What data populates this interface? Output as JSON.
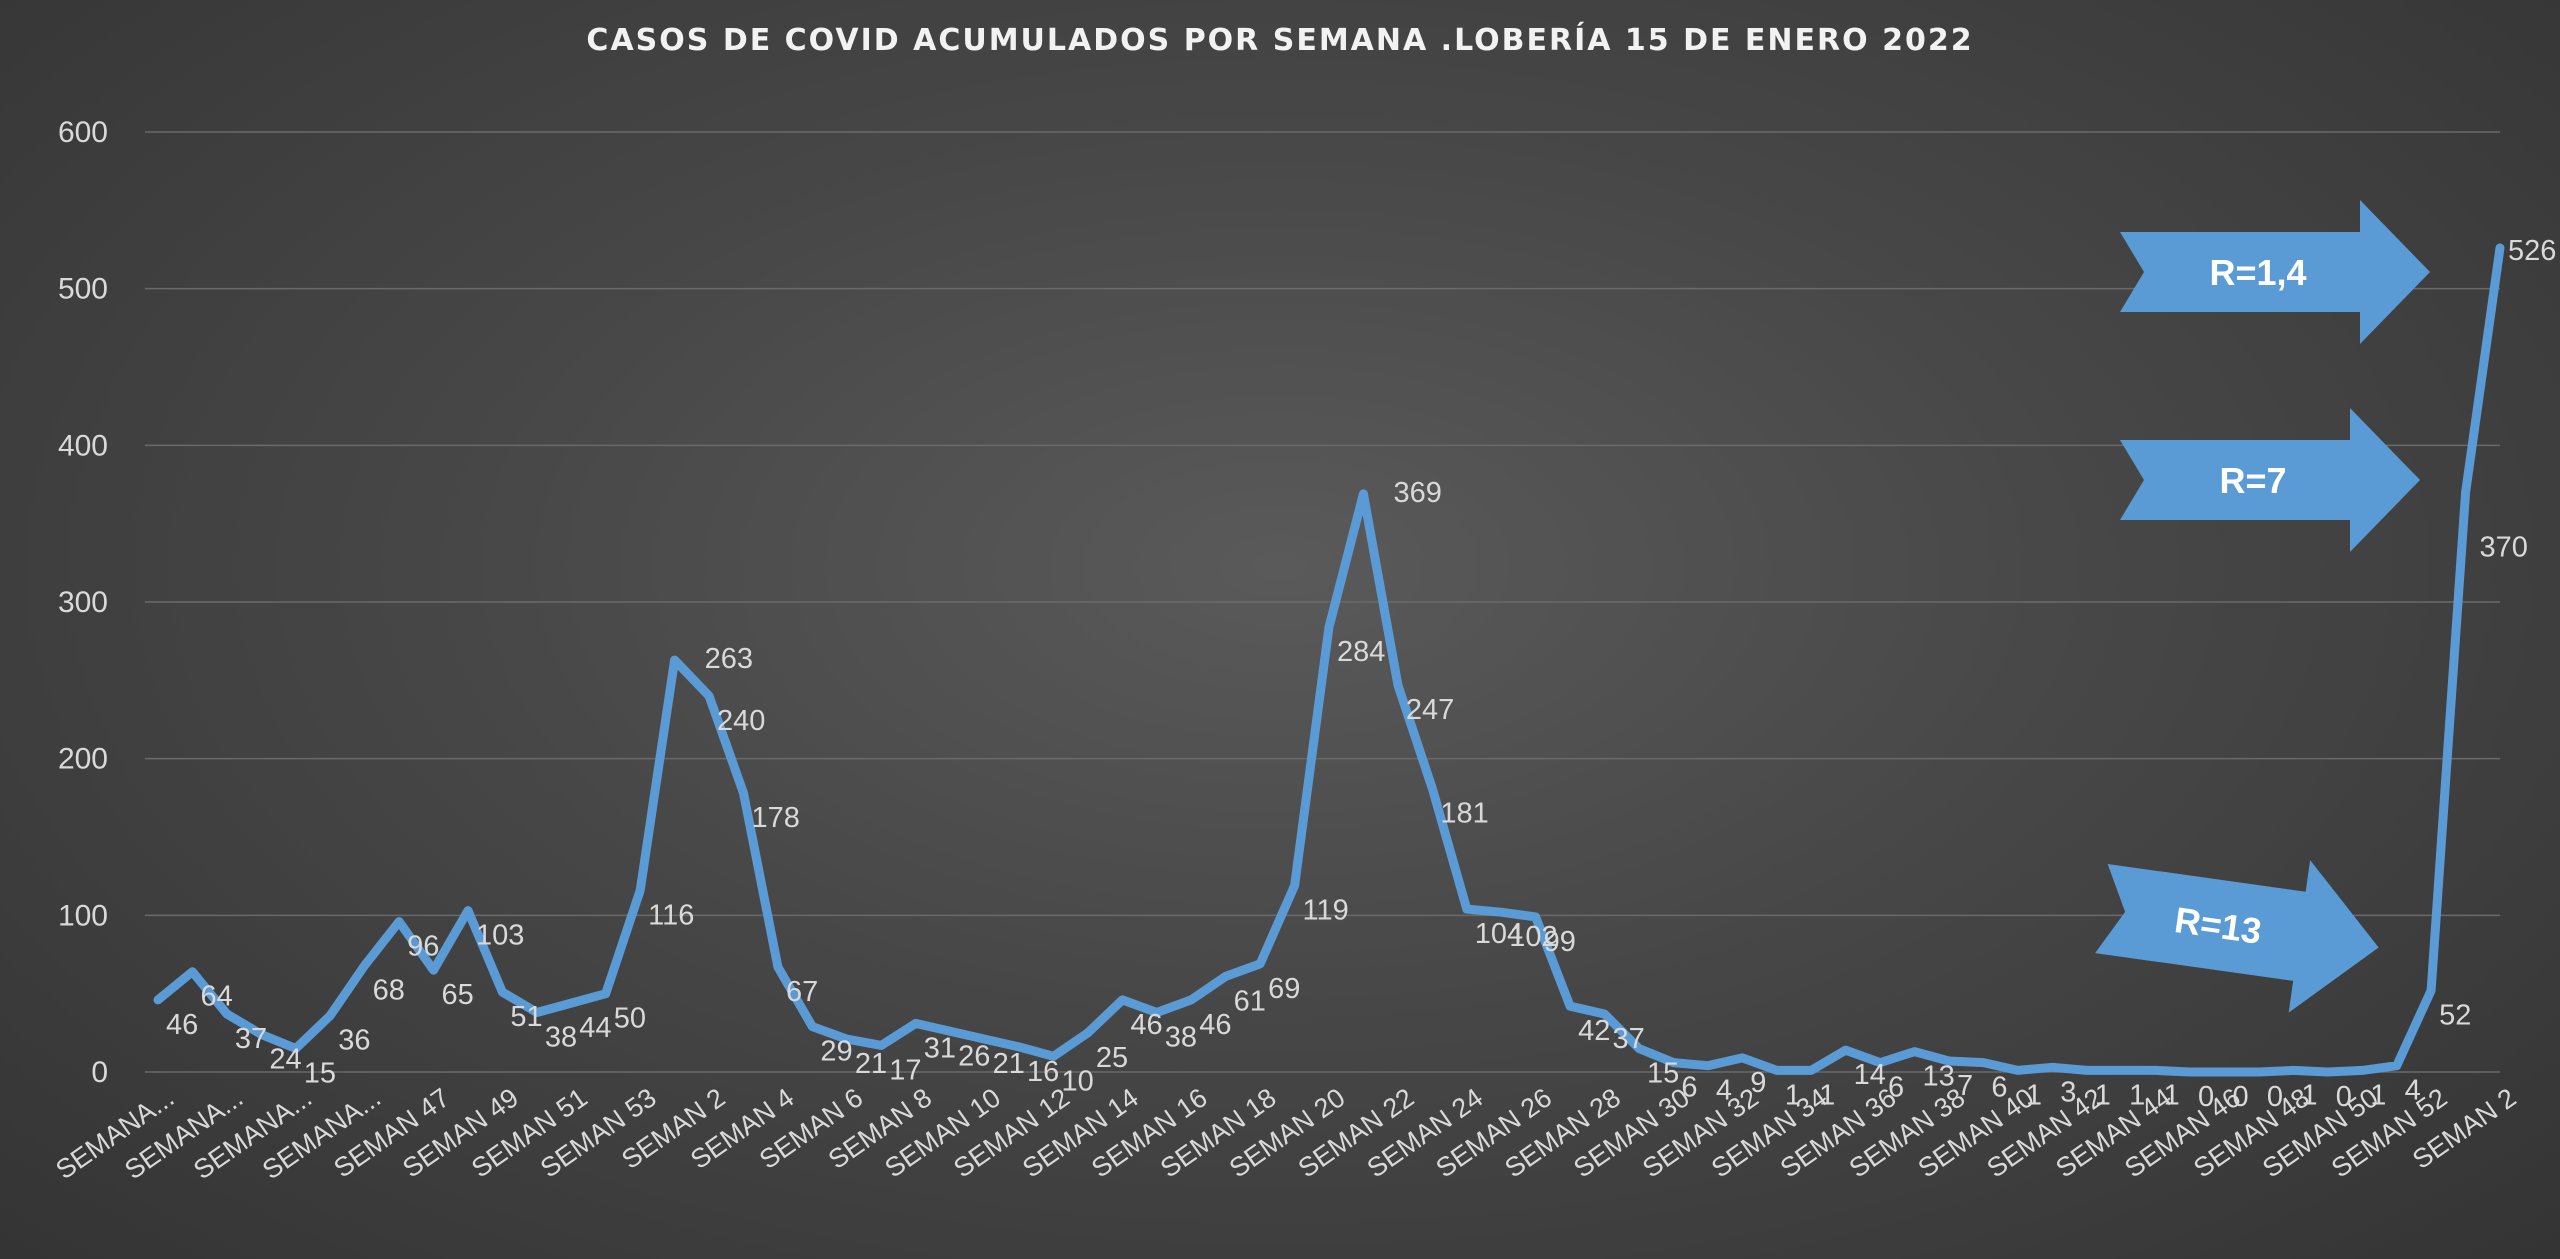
{
  "chart_data": {
    "type": "line",
    "title": "CASOS DE COVID ACUMULADOS POR SEMANA .LOBERÍA 15 DE ENERO 2022",
    "ylim": [
      0,
      600
    ],
    "yticks": [
      "0",
      "100",
      "200",
      "300",
      "400",
      "500",
      "600"
    ],
    "grid": true,
    "legend": "none",
    "series_color": "#5b9bd5",
    "x_tick_labels": [
      "SEMANA...",
      "SEMANA...",
      "SEMANA...",
      "SEMANA...",
      "SEMAN 47",
      "SEMAN 49",
      "SEMAN 51",
      "SEMAN 53",
      "SEMAN 2",
      "SEMAN 4",
      "SEMAN 6",
      "SEMAN 8",
      "SEMAN 10",
      "SEMAN 12",
      "SEMAN 14",
      "SEMAN 16",
      "SEMAN 18",
      "SEMAN 20",
      "SEMAN 22",
      "SEMAN 24",
      "SEMAN 26",
      "SEMAN 28",
      "SEMAN 30",
      "SEMAN 32",
      "SEMAN 34",
      "SEMAN 36",
      "SEMAN 38",
      "SEMAN 40",
      "SEMAN 42",
      "SEMAN 44",
      "SEMAN 46",
      "SEMAN 48",
      "SEMAN 50",
      "SEMAN 52",
      "SEMAN 2"
    ],
    "values": [
      46,
      64,
      37,
      24,
      15,
      36,
      68,
      96,
      65,
      103,
      51,
      38,
      44,
      50,
      116,
      263,
      240,
      178,
      67,
      29,
      21,
      17,
      31,
      26,
      21,
      16,
      10,
      25,
      46,
      38,
      46,
      61,
      69,
      119,
      284,
      369,
      247,
      181,
      104,
      102,
      99,
      42,
      37,
      15,
      6,
      4,
      9,
      1,
      1,
      14,
      6,
      13,
      7,
      6,
      1,
      3,
      1,
      1,
      1,
      0,
      0,
      0,
      1,
      0,
      1,
      4,
      52,
      370,
      526
    ]
  },
  "annotations": [
    {
      "text": "R=1,4"
    },
    {
      "text": "R=7"
    },
    {
      "text": "R=13"
    }
  ]
}
